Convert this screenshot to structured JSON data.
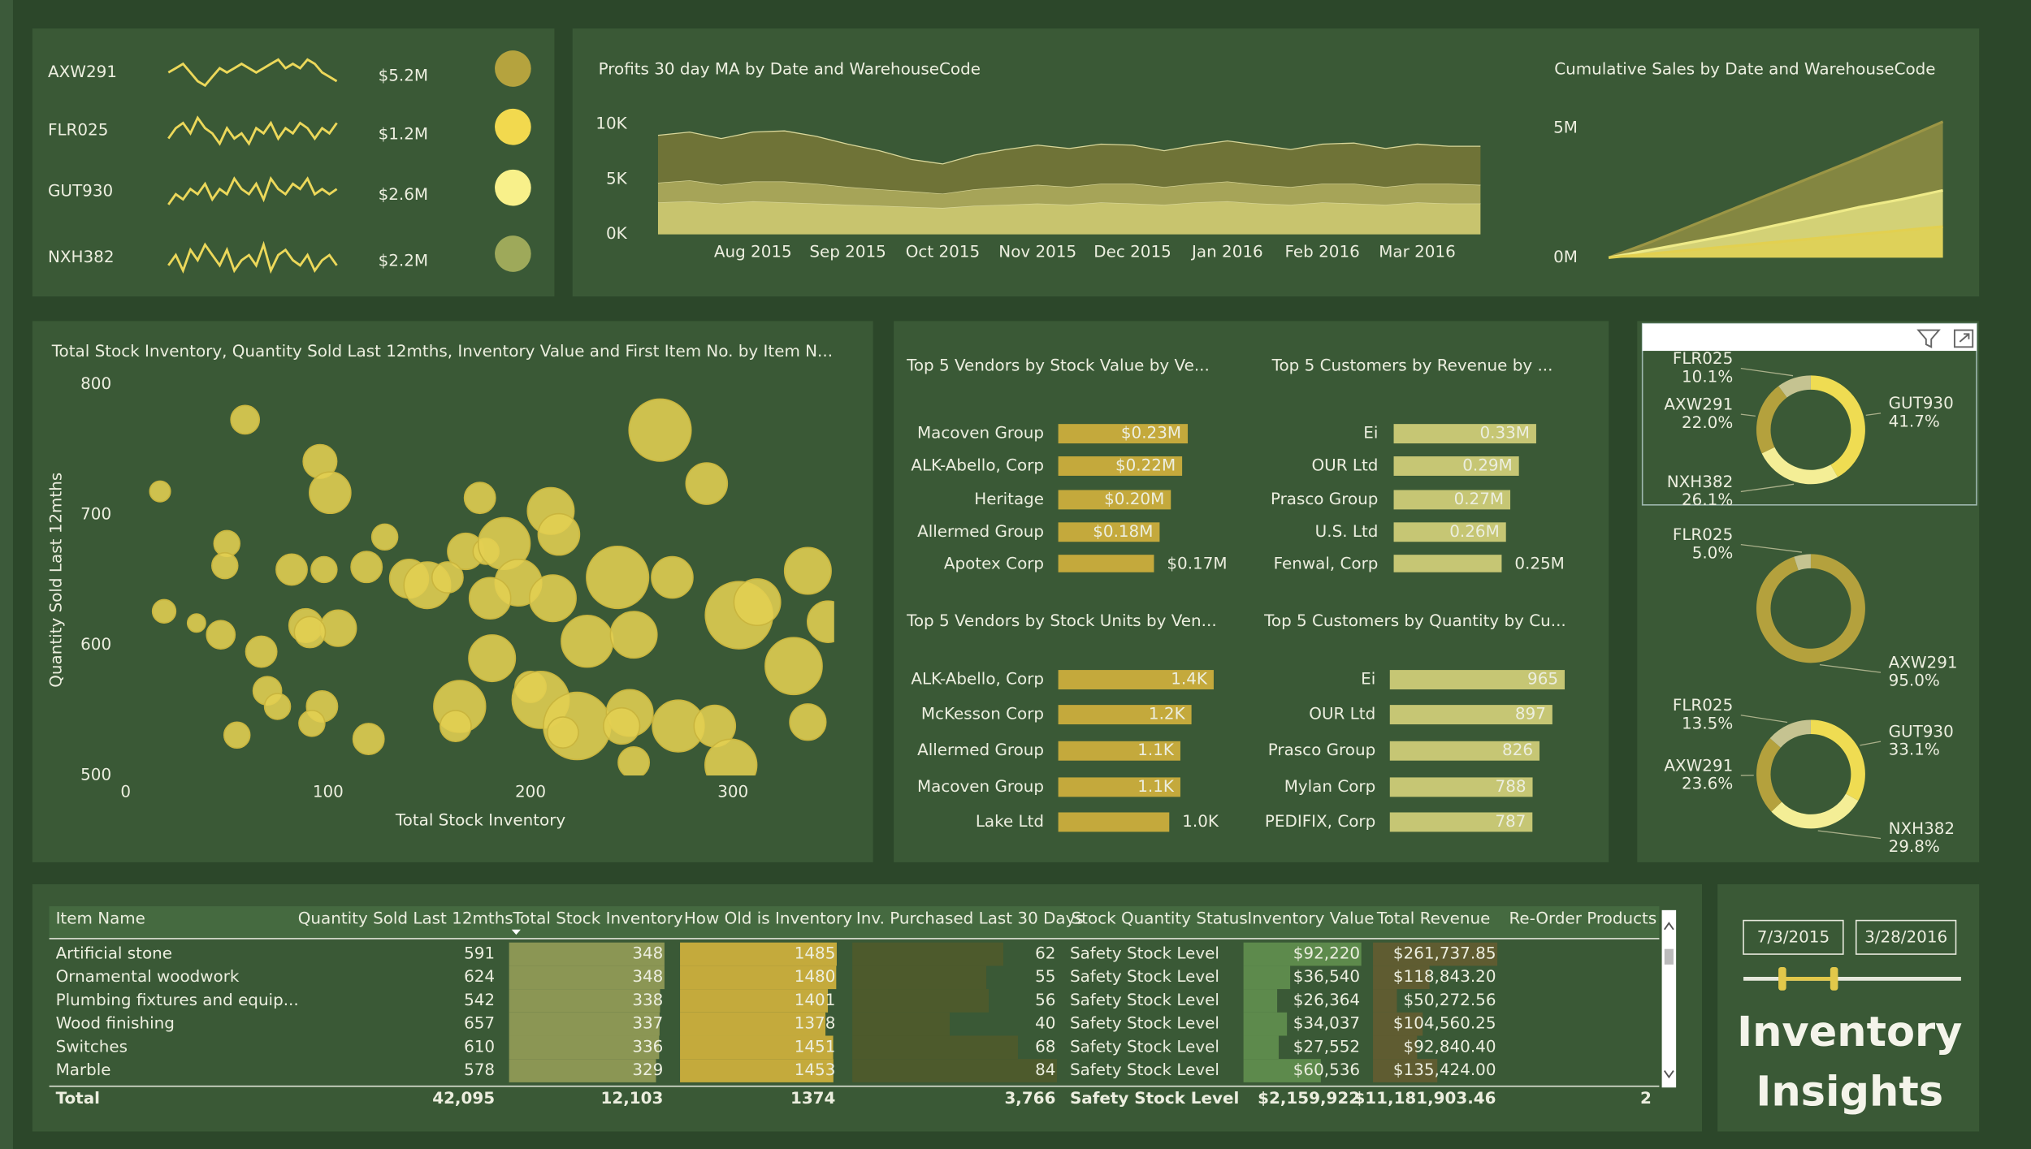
{
  "kpis": [
    {
      "name": "AXW291",
      "value": "$5.2M",
      "color": "#b5a33e",
      "sparkline": [
        5,
        6,
        7,
        5,
        3,
        2,
        4,
        6,
        5,
        6,
        7,
        6,
        5,
        6,
        7,
        8,
        6,
        7,
        6,
        8,
        7,
        5,
        4,
        3
      ]
    },
    {
      "name": "FLR025",
      "value": "$1.2M",
      "color": "#f2d94e",
      "sparkline": [
        4,
        6,
        7,
        5,
        8,
        6,
        5,
        3,
        6,
        4,
        5,
        3,
        6,
        5,
        7,
        4,
        6,
        5,
        7,
        6,
        4,
        6,
        5,
        7
      ]
    },
    {
      "name": "GUT930",
      "value": "$2.6M",
      "color": "#f8f08a",
      "sparkline": [
        3,
        5,
        4,
        6,
        5,
        7,
        4,
        6,
        5,
        8,
        6,
        5,
        7,
        4,
        8,
        6,
        5,
        7,
        6,
        8,
        5,
        6,
        5,
        6
      ]
    },
    {
      "name": "NXH382",
      "value": "$2.2M",
      "color": "#9ea95a",
      "sparkline": [
        4,
        6,
        3,
        7,
        5,
        8,
        6,
        4,
        7,
        3,
        5,
        6,
        4,
        8,
        3,
        6,
        7,
        5,
        4,
        6,
        3,
        5,
        6,
        4
      ]
    }
  ],
  "chart_data": [
    {
      "type": "area",
      "title": "Profits 30 day MA by Date and WarehouseCode",
      "stacked": true,
      "categories": [
        null,
        null,
        null,
        "Aug 2015",
        null,
        null,
        "Sep 2015",
        null,
        null,
        "Oct 2015",
        null,
        null,
        "Nov 2015",
        null,
        null,
        "Dec 2015",
        null,
        null,
        "Jan 2016",
        null,
        null,
        "Feb 2016",
        null,
        null,
        "Mar 2016",
        null,
        null
      ],
      "series": [
        {
          "color": "#c8c46e",
          "values": [
            2900,
            3000,
            2800,
            3000,
            2900,
            2800,
            2700,
            2600,
            2500,
            2400,
            2600,
            2700,
            2800,
            2700,
            2900,
            2800,
            2700,
            2900,
            3000,
            2800,
            2700,
            2900,
            2800,
            2700,
            2900,
            2800,
            2800
          ]
        },
        {
          "color": "#a6a458",
          "values": [
            1800,
            1900,
            1700,
            1800,
            1900,
            1800,
            1600,
            1500,
            1400,
            1300,
            1500,
            1600,
            1700,
            1600,
            1700,
            1800,
            1600,
            1700,
            1800,
            1700,
            1600,
            1700,
            1800,
            1600,
            1700,
            1800,
            1700
          ]
        },
        {
          "color": "#6f7337",
          "values": [
            4300,
            4400,
            4200,
            4500,
            4600,
            4300,
            3900,
            3500,
            2900,
            2700,
            3100,
            3400,
            3600,
            3500,
            3600,
            3500,
            3300,
            3500,
            3700,
            3600,
            3400,
            3600,
            3700,
            3500,
            3600,
            3400,
            3500
          ]
        }
      ],
      "ylim": [
        0,
        10000
      ],
      "yticks": [
        {
          "value": 0,
          "label": "0K"
        },
        {
          "value": 5000,
          "label": "5K"
        },
        {
          "value": 10000,
          "label": "10K"
        }
      ]
    },
    {
      "type": "area",
      "title": "Cumulative Sales by Date and WarehouseCode",
      "stacked": false,
      "categories": [
        null,
        null,
        null,
        null,
        null,
        null,
        null,
        null,
        null
      ],
      "series": [
        {
          "color": "#9c9645",
          "values": [
            0,
            600000,
            1250000,
            1900000,
            2550000,
            3200000,
            3850000,
            4550000,
            5250000
          ]
        },
        {
          "color": "#eeea88",
          "values": [
            0,
            300000,
            600000,
            900000,
            1250000,
            1600000,
            1950000,
            2250000,
            2600000
          ]
        },
        {
          "color": "#e2d050",
          "values": [
            0,
            150000,
            300000,
            450000,
            600000,
            750000,
            900000,
            1050000,
            1200000
          ]
        }
      ],
      "ylim": [
        0,
        5250000
      ],
      "yticks": [
        {
          "value": 0,
          "label": "0M"
        },
        {
          "value": 5000000,
          "label": "5M"
        }
      ]
    },
    {
      "type": "scatter",
      "title": "Total Stock Inventory, Quantity Sold Last 12mths, Inventory Value and First Item No. by Item N...",
      "x_label": "Total Stock Inventory",
      "y_label": "Quantity Sold Last 12mths",
      "color": "#e3cf52",
      "x": [
        59,
        17,
        96,
        101,
        264,
        287,
        175,
        210,
        214,
        128,
        50,
        49,
        82,
        98,
        119,
        140,
        149,
        168,
        178,
        187,
        194,
        180,
        159,
        243,
        270,
        337,
        211,
        19,
        35,
        47,
        67,
        89,
        105,
        91,
        228,
        251,
        303,
        312,
        330,
        347,
        181,
        200,
        205,
        165,
        163,
        223,
        249,
        245,
        216,
        273,
        291,
        337,
        70,
        75,
        97,
        92,
        55,
        251,
        299,
        120
      ],
      "y": [
        773,
        718,
        741,
        717,
        765,
        724,
        713,
        703,
        685,
        683,
        678,
        661,
        658,
        658,
        660,
        651,
        646,
        672,
        672,
        678,
        648,
        636,
        652,
        652,
        652,
        657,
        636,
        626,
        617,
        608,
        595,
        615,
        613,
        610,
        603,
        608,
        623,
        633,
        584,
        618,
        590,
        568,
        558,
        553,
        538,
        538,
        548,
        538,
        533,
        538,
        538,
        541,
        565,
        553,
        553,
        540,
        531,
        510,
        508,
        528
      ],
      "sizes": [
        11,
        8,
        13,
        16,
        24,
        16,
        12,
        18,
        16,
        10,
        10,
        10,
        12,
        10,
        12,
        15,
        18,
        14,
        10,
        20,
        18,
        16,
        12,
        24,
        16,
        18,
        18,
        9,
        7,
        11,
        12,
        13,
        14,
        12,
        20,
        18,
        26,
        18,
        22,
        16,
        18,
        12,
        22,
        20,
        12,
        26,
        18,
        14,
        12,
        20,
        16,
        14,
        11,
        10,
        12,
        10,
        10,
        12,
        20,
        12
      ],
      "xlim": [
        0,
        350
      ],
      "xticks": [
        0,
        100,
        200,
        300
      ],
      "ylim": [
        500,
        800
      ],
      "yticks": [
        500,
        600,
        700,
        800
      ]
    },
    {
      "type": "hbar",
      "title": "Top 5 Vendors by Stock Value by Ve...",
      "color": "#c4a93c",
      "categories": [
        "Macoven Group",
        "ALK-Abello, Corp",
        "Heritage",
        "Allermed Group",
        "Apotex Corp"
      ],
      "values": [
        0.23,
        0.22,
        0.2,
        0.18,
        0.17
      ],
      "value_labels": [
        "$0.23M",
        "$0.22M",
        "$0.20M",
        "$0.18M",
        "$0.17M"
      ]
    },
    {
      "type": "hbar",
      "title": "Top 5 Customers by Revenue by ...",
      "color": "#c6c674",
      "categories": [
        "Ei",
        "OUR Ltd",
        "Prasco Group",
        "U.S. Ltd",
        "Fenwal, Corp"
      ],
      "values": [
        0.33,
        0.29,
        0.27,
        0.26,
        0.25
      ],
      "value_labels": [
        "0.33M",
        "0.29M",
        "0.27M",
        "0.26M",
        "0.25M"
      ]
    },
    {
      "type": "hbar",
      "title": "Top 5 Vendors by Stock Units by Ven...",
      "color": "#c4a93c",
      "categories": [
        "ALK-Abello, Corp",
        "McKesson Corp",
        "Allermed Group",
        "Macoven Group",
        "Lake Ltd"
      ],
      "values": [
        1400,
        1200,
        1100,
        1100,
        1000
      ],
      "value_labels": [
        "1.4K",
        "1.2K",
        "1.1K",
        "1.1K",
        "1.0K"
      ]
    },
    {
      "type": "hbar",
      "title": "Top 5 Customers by Quantity by Cu...",
      "color": "#c6c674",
      "categories": [
        "Ei",
        "OUR Ltd",
        "Prasco Group",
        "Mylan Corp",
        "PEDIFIX, Corp"
      ],
      "values": [
        965,
        897,
        826,
        788,
        787
      ]
    },
    {
      "type": "donut",
      "categories": [
        "GUT930",
        "NXH382",
        "AXW291",
        "FLR025"
      ],
      "values": [
        41.7,
        26.1,
        22.0,
        10.1
      ],
      "value_labels": [
        "41.7%",
        "26.1%",
        "22.0%",
        "10.1%"
      ],
      "colors": [
        "#efdc52",
        "#f4ee96",
        "#b4a13d",
        "#c5c391"
      ]
    },
    {
      "type": "donut",
      "categories": [
        "AXW291",
        "FLR025"
      ],
      "values": [
        95.0,
        5.0
      ],
      "value_labels": [
        "95.0%",
        "5.0%"
      ],
      "colors": [
        "#b4a13d",
        "#c5c391"
      ]
    },
    {
      "type": "donut",
      "categories": [
        "GUT930",
        "NXH382",
        "AXW291",
        "FLR025"
      ],
      "values": [
        33.1,
        29.8,
        23.6,
        13.5
      ],
      "value_labels": [
        "33.1%",
        "29.8%",
        "23.6%",
        "13.5%"
      ],
      "colors": [
        "#efdc52",
        "#f4ee96",
        "#b4a13d",
        "#c5c391"
      ]
    }
  ],
  "table": {
    "columns": [
      "Item Name",
      "Quantity Sold Last 12mths",
      "Total Stock Inventory",
      "How Old is Inventory",
      "Inv. Purchased Last 30 Days",
      "Stock Quantity Status",
      "Inventory Value",
      "Total Revenue",
      "Re-Order Products"
    ],
    "rows": [
      [
        "Artificial stone",
        "591",
        "348",
        "1485",
        "62",
        "Safety Stock Level",
        "$92,220",
        "$261,737.85"
      ],
      [
        "Ornamental woodwork",
        "624",
        "348",
        "1480",
        "55",
        "Safety Stock Level",
        "$36,540",
        "$118,843.20"
      ],
      [
        "Plumbing fixtures and equip...",
        "542",
        "338",
        "1401",
        "56",
        "Safety Stock Level",
        "$26,364",
        "$50,272.56"
      ],
      [
        "Wood finishing",
        "657",
        "337",
        "1378",
        "40",
        "Safety Stock Level",
        "$34,037",
        "$104,560.25"
      ],
      [
        "Switches",
        "610",
        "336",
        "1451",
        "68",
        "Safety Stock Level",
        "$27,552",
        "$92,840.40"
      ],
      [
        "Marble",
        "578",
        "329",
        "1453",
        "84",
        "Safety Stock Level",
        "$60,536",
        "$135,424.00"
      ]
    ],
    "total": [
      "Total",
      "42,095",
      "12,103",
      "1374",
      "3,766",
      "Safety Stock Level",
      "$2,159,922",
      "$11,181,903.46",
      "2"
    ]
  },
  "date_slicer": {
    "start": "7/3/2015",
    "end": "3/28/2016"
  },
  "brand": "Inventory Insights"
}
